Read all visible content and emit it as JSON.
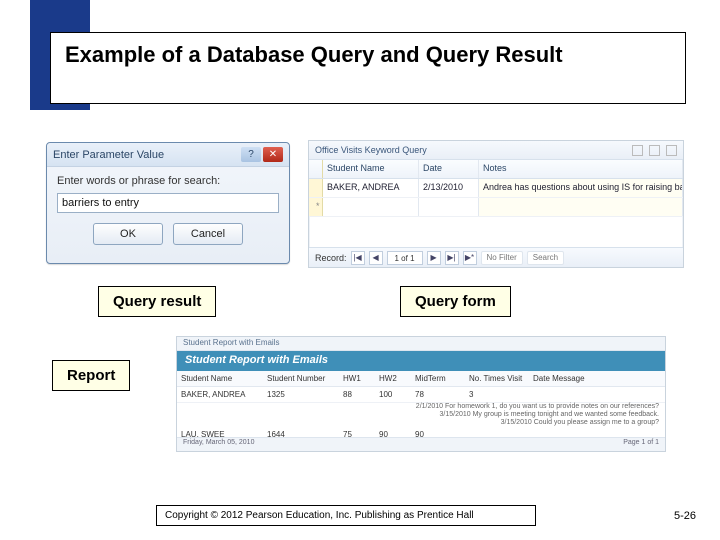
{
  "slide": {
    "title": "Example of a Database Query and Query Result",
    "copyright": "Copyright © 2012 Pearson Education, Inc. Publishing as Prentice Hall",
    "page_number": "5-26",
    "accent_bar_color": "#1a3a8a"
  },
  "labels": {
    "query_result": "Query result",
    "query_form": "Query form",
    "report": "Report"
  },
  "dialog": {
    "title": "Enter Parameter Value",
    "prompt": "Enter words or phrase for search:",
    "value": "barriers to entry",
    "ok": "OK",
    "cancel": "Cancel",
    "help_glyph": "?",
    "close_glyph": "✕"
  },
  "grid": {
    "window_title": "Office Visits Keyword Query",
    "columns": [
      "Student Name",
      "Date",
      "Notes"
    ],
    "row": {
      "student": "BAKER, ANDREA",
      "date": "2/13/2010",
      "notes": "Andrea has questions about using IS for raising barriers to entry."
    },
    "nav": {
      "label": "Record:",
      "pos": "1 of 1",
      "first": "|◀",
      "prev": "◀",
      "next": "▶",
      "last": "▶|",
      "new": "▶*",
      "filter": "No Filter",
      "search": "Search"
    }
  },
  "report": {
    "tab": "Student Report with Emails",
    "title": "Student Report with Emails",
    "columns": [
      "Student Name",
      "Student Number",
      "HW1",
      "HW2",
      "MidTerm",
      "No. Times Visit",
      "Date Message"
    ],
    "row1": {
      "name": "BAKER, ANDREA",
      "num": "1325",
      "hw1": "88",
      "hw2": "100",
      "mid": "78",
      "visits": "3"
    },
    "msgs": [
      "2/1/2010 For homework 1, do you want us to provide notes on our references?",
      "3/15/2010 My group is meeting tonight and we wanted some feedback.",
      "3/15/2010 Could you please assign me to a group?"
    ],
    "row2": {
      "name": "LAU, SWEE",
      "num": "1644",
      "hw1": "75",
      "hw2": "90",
      "mid": "90",
      "visits": ""
    },
    "footer_date": "Friday, March 05, 2010",
    "footer_page": "Page 1 of 1"
  }
}
